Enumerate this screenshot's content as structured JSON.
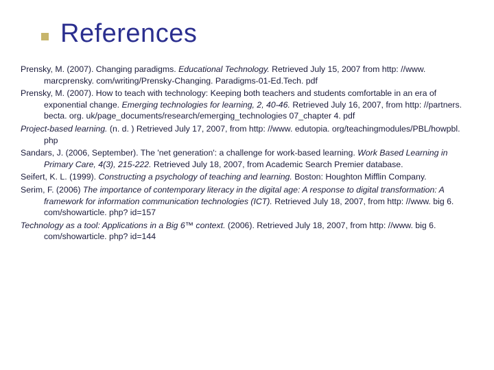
{
  "title": "References",
  "colors": {
    "title_color": "#2b2f8f",
    "bullet_color": "#c7b56b",
    "text_color": "#1a1a3a",
    "background": "#ffffff"
  },
  "typography": {
    "title_fontsize": 38,
    "body_fontsize": 12.3,
    "font_family": "Verdana"
  },
  "references": [
    {
      "runs": [
        {
          "t": "Prensky, M. (2007). Changing paradigms. ",
          "i": false
        },
        {
          "t": "Educational Technology.",
          "i": true
        },
        {
          "t": " Retrieved July 15, 2007 from http: //www. marcprensky. com/writing/Prensky-Changing. Paradigms-01-Ed.Tech. pdf",
          "i": false
        }
      ]
    },
    {
      "runs": [
        {
          "t": "Prensky, M. (2007). How to teach with technology: Keeping both teachers and students comfortable in an era of exponential change. ",
          "i": false
        },
        {
          "t": "Emerging technologies for learning, 2, 40-46.",
          "i": true
        },
        {
          "t": " Retrieved July 16, 2007, from http: //partners. becta. org. uk/page_documents/research/emerging_technologies 07_chapter 4. pdf",
          "i": false
        }
      ]
    },
    {
      "runs": [
        {
          "t": "Project-based learning.",
          "i": true
        },
        {
          "t": " (n. d. ) Retrieved July 17, 2007, from http: //www. edutopia. org/teachingmodules/PBL/howpbl. php",
          "i": false
        }
      ]
    },
    {
      "runs": [
        {
          "t": "Sandars, J. (2006, September). The 'net generation': a challenge for work-based learning. ",
          "i": false
        },
        {
          "t": "Work Based Learning in Primary Care, 4(3), 215-222.",
          "i": true
        },
        {
          "t": " Retrieved July 18, 2007, from Academic Search Premier database.",
          "i": false
        }
      ]
    },
    {
      "runs": [
        {
          "t": "Seifert, K. L. (1999). ",
          "i": false
        },
        {
          "t": "Constructing a psychology of teaching and learning.",
          "i": true
        },
        {
          "t": " Boston: Houghton Mifflin Company.",
          "i": false
        }
      ]
    },
    {
      "runs": [
        {
          "t": "Serim, F. (2006) ",
          "i": false
        },
        {
          "t": "The importance of contemporary literacy in the digital age: A response to digital transformation: A framework for information communication technologies (ICT).",
          "i": true
        },
        {
          "t": " Retrieved July 18, 2007, from http: //www. big 6. com/showarticle. php? id=157",
          "i": false
        }
      ]
    },
    {
      "runs": [
        {
          "t": "Technology as a tool: Applications in a Big 6™ context.",
          "i": true
        },
        {
          "t": " (2006). Retrieved July 18, 2007, from http: //www. big 6. com/showarticle. php? id=144",
          "i": false
        }
      ]
    }
  ]
}
